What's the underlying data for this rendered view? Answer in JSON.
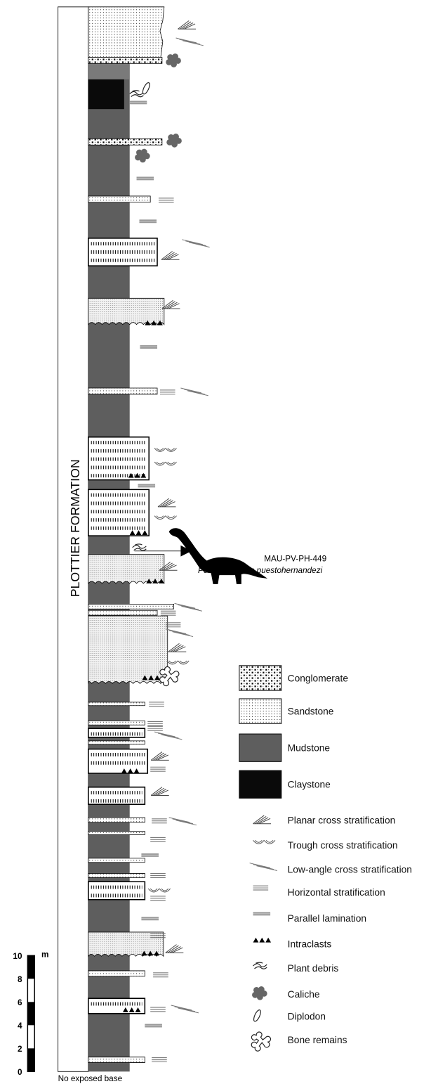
{
  "formation": "PLOTTIER FORMATION",
  "specimen": {
    "id": "MAU-PV-PH-449",
    "taxon": "Petrobrasaurus puestohernandezi"
  },
  "legend": [
    "Conglomerate",
    "Sandstone",
    "Mudstone",
    "Claystone",
    "Planar cross stratification",
    "Trough cross stratification",
    "Low-angle cross stratification",
    "Horizontal stratification",
    "Parallel lamination",
    "Intraclasts",
    "Plant debris",
    "Caliche",
    "Diplodon",
    "Bone remains"
  ],
  "scale": {
    "unit": "m",
    "ticks": [
      10,
      8,
      6,
      4,
      2,
      0
    ]
  },
  "base_note": "No exposed base"
}
